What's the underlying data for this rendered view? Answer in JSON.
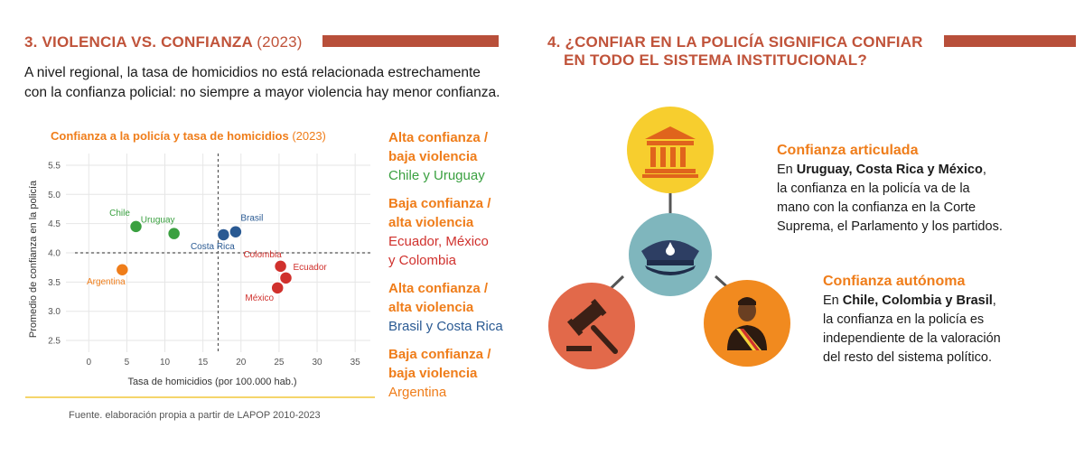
{
  "left": {
    "title": "3. VIOLENCIA VS. CONFIANZA",
    "title_year": "(2023)",
    "intro_line1": "A nivel regional, la tasa de homicidios no está relacionada estrechamente",
    "intro_line2": "con la confianza policial: no siempre a mayor violencia hay menor confianza.",
    "chart_title": "Confianza a la policía y tasa de homicidios",
    "chart_title_year": "(2023)",
    "source": "Fuente. elaboración propia a partir de LAPOP 2010-2023",
    "categories": [
      {
        "h1": "Alta confianza /",
        "h2": "baja violencia",
        "v1": "Chile y Uruguay",
        "v2": "",
        "color": "#3aa040"
      },
      {
        "h1": "Baja confianza /",
        "h2": "alta violencia",
        "v1": "Ecuador, México",
        "v2": "y Colombia",
        "color": "#d0312d"
      },
      {
        "h1": "Alta confianza /",
        "h2": "alta violencia",
        "v1": "Brasil y Costa Rica",
        "v2": "",
        "color": "#2a5a93"
      },
      {
        "h1": "Baja confianza /",
        "h2": "baja violencia",
        "v1": "Argentina",
        "v2": "",
        "color": "#ef7d1a"
      }
    ]
  },
  "right": {
    "title_line1": "4. ¿CONFIAR EN LA POLICÍA SIGNIFICA CONFIAR",
    "title_line2": "EN TODO EL SISTEMA INSTITUCIONAL?",
    "articulada": {
      "title": "Confianza articulada",
      "en": "En",
      "countries": "Uruguay, Costa Rica y México",
      "comma": ",",
      "l2": "la confianza en la policía va de la",
      "l3": "mano con la confianza en la Corte",
      "l4": "Suprema, el Parlamento y los partidos."
    },
    "autonoma": {
      "title": "Confianza autónoma",
      "en": "En",
      "countries": "Chile, Colombia y Brasil",
      "comma": ",",
      "l2": "la confianza en la policía es",
      "l3": "independiente de la valoración",
      "l4": "del resto del sistema político."
    },
    "icons": {
      "top": "courthouse-icon",
      "center": "police-cap-icon",
      "left": "gavel-icon",
      "right": "politician-icon"
    },
    "colors": {
      "top": "#f7ce2e",
      "center": "#7fb6bd",
      "left": "#e2694a",
      "right": "#f18a1f"
    }
  },
  "chart_data": {
    "type": "scatter",
    "title": "Confianza a la policía y tasa de homicidios (2023)",
    "xlabel": "Tasa de homicidios (por 100.000 hab.)",
    "ylabel": "Promedio de confianza en la policía",
    "xlim": [
      -3,
      37
    ],
    "ylim": [
      2.3,
      5.7
    ],
    "xticks": [
      0,
      5,
      10,
      15,
      20,
      25,
      30,
      35
    ],
    "yticks": [
      2.5,
      3.0,
      3.5,
      4.0,
      4.5,
      5.0,
      5.5
    ],
    "xtick_labels": [
      "0",
      "5",
      "10",
      "15",
      "20",
      "25",
      "30",
      "35"
    ],
    "ytick_labels": [
      "2.5",
      "3.0",
      "3.5",
      "4.0",
      "4.5",
      "5.0",
      "5.5"
    ],
    "reference_lines": {
      "x": 17,
      "y": 4.0
    },
    "grid": true,
    "points": [
      {
        "name": "Chile",
        "x": 6.2,
        "y": 4.45,
        "color": "#3aa040"
      },
      {
        "name": "Uruguay",
        "x": 11.2,
        "y": 4.33,
        "color": "#3aa040"
      },
      {
        "name": "Costa Rica",
        "x": 17.7,
        "y": 4.31,
        "color": "#2a5a93"
      },
      {
        "name": "Brasil",
        "x": 19.3,
        "y": 4.36,
        "color": "#2a5a93"
      },
      {
        "name": "Argentina",
        "x": 4.4,
        "y": 3.71,
        "color": "#ef7d1a"
      },
      {
        "name": "Colombia",
        "x": 25.2,
        "y": 3.77,
        "color": "#d0312d"
      },
      {
        "name": "Ecuador",
        "x": 25.9,
        "y": 3.57,
        "color": "#d0312d"
      },
      {
        "name": "México",
        "x": 24.8,
        "y": 3.4,
        "color": "#d0312d"
      }
    ]
  }
}
